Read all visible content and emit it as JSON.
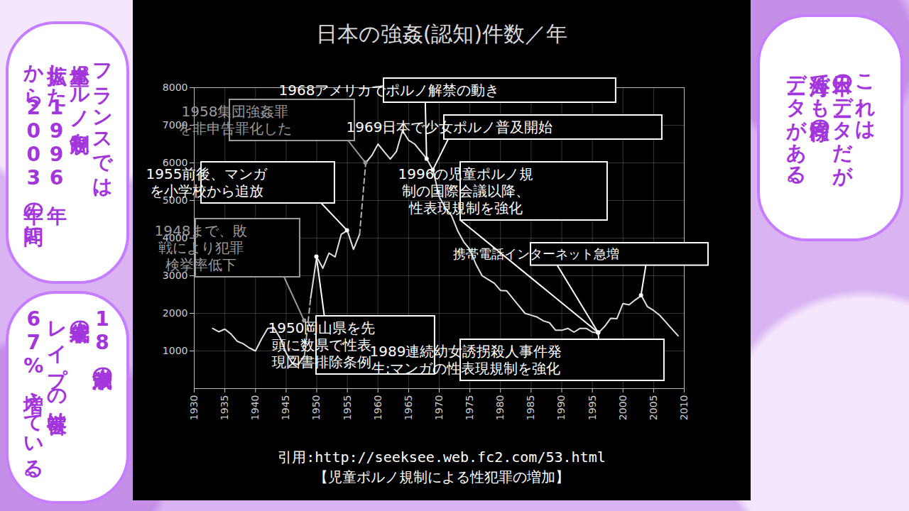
{
  "chart_data": {
    "type": "line",
    "title": "日本の強姦(認知)件数／年",
    "source": "引用:http://seeksee.web.fc2.com/53.html",
    "caption": "【児童ポルノ規制による性犯罪の増加】",
    "x": [
      1933,
      1934,
      1935,
      1936,
      1937,
      1938,
      1939,
      1940,
      1941,
      1942,
      1943,
      1944,
      1945,
      1946,
      1947,
      1948,
      1949,
      1950,
      1951,
      1952,
      1953,
      1954,
      1955,
      1956,
      1957,
      1958,
      1959,
      1960,
      1961,
      1962,
      1963,
      1964,
      1965,
      1966,
      1967,
      1968,
      1969,
      1970,
      1971,
      1972,
      1973,
      1974,
      1975,
      1976,
      1977,
      1978,
      1979,
      1980,
      1981,
      1982,
      1983,
      1984,
      1985,
      1986,
      1987,
      1988,
      1989,
      1990,
      1991,
      1992,
      1993,
      1994,
      1995,
      1996,
      1997,
      1998,
      1999,
      2000,
      2001,
      2002,
      2003,
      2004,
      2005,
      2006,
      2007,
      2008,
      2009
    ],
    "series": [
      {
        "color": "#e0e0e0",
        "line_style": "solid",
        "values": [
          1600,
          1510,
          1580,
          1450,
          1260,
          1190,
          1080,
          1000,
          1320,
          1600,
          1620,
          1350,
          950,
          680,
          640,
          880,
          null,
          null,
          null,
          null,
          null,
          null,
          null,
          null,
          null,
          6000,
          6200,
          6500,
          6300,
          6100,
          6300,
          6857,
          6600,
          6500,
          6300,
          6100,
          5800,
          5100,
          4800,
          4600,
          4200,
          3900,
          3700,
          3300,
          3000,
          2900,
          2800,
          2610,
          2600,
          2400,
          2200,
          2000,
          1950,
          1900,
          1800,
          1750,
          1550,
          1550,
          1600,
          1500,
          1600,
          1600,
          1500,
          1483,
          1650,
          1870,
          1857,
          2260,
          2228,
          2357,
          2472,
          2176,
          2076,
          1948,
          1766,
          1582,
          1402
        ]
      },
      {
        "color": "#e0e0e0",
        "line_style": "solid",
        "values": [
          null,
          null,
          null,
          null,
          null,
          null,
          null,
          null,
          null,
          null,
          null,
          null,
          null,
          null,
          null,
          null,
          2400,
          3500,
          3200,
          3600,
          3500,
          4100,
          4200,
          3700,
          4100,
          null,
          null,
          null,
          null,
          null,
          null,
          null,
          null,
          null,
          null,
          null,
          null,
          null,
          null,
          null,
          null,
          null,
          null,
          null,
          null,
          null,
          null,
          null,
          null,
          null,
          null,
          null,
          null,
          null,
          null,
          null,
          null,
          null,
          null,
          null,
          null,
          null,
          null,
          null,
          null,
          null,
          null,
          null,
          null,
          null,
          null,
          null,
          null,
          null,
          null,
          null,
          null
        ]
      },
      {
        "color": "#b0b0b0",
        "line_style": "dashed",
        "values": [
          null,
          null,
          null,
          null,
          null,
          null,
          null,
          null,
          null,
          null,
          null,
          null,
          null,
          null,
          null,
          880,
          2400,
          null,
          null,
          null,
          null,
          null,
          null,
          null,
          4100,
          6000,
          null,
          null,
          null,
          null,
          null,
          null,
          null,
          null,
          null,
          null,
          null,
          null,
          null,
          null,
          null,
          null,
          null,
          null,
          null,
          null,
          null,
          null,
          null,
          null,
          null,
          null,
          null,
          null,
          null,
          null,
          null,
          null,
          null,
          null,
          null,
          null,
          null,
          null,
          null,
          null,
          null,
          null,
          null,
          null,
          null,
          null,
          null,
          null,
          null,
          null,
          null
        ]
      }
    ],
    "xlim": [
      1930,
      2010
    ],
    "xticks": [
      1930,
      1935,
      1940,
      1945,
      1950,
      1955,
      1960,
      1965,
      1970,
      1975,
      1980,
      1985,
      1990,
      1995,
      2000,
      2005,
      2010
    ],
    "ylim": [
      0,
      8000
    ],
    "yticks": [
      1000,
      2000,
      3000,
      4000,
      5000,
      6000,
      7000,
      8000
    ],
    "grid": true,
    "annotations": [
      {
        "text": [
          "1958集団強姦罪",
          "を非申告罪化した"
        ],
        "points": [
          [
            1958,
            6000
          ]
        ],
        "color": "#9a9a9a"
      },
      {
        "text": [
          "1968アメリカでポルノ解禁の動き"
        ],
        "points": [
          [
            1968,
            6100
          ]
        ],
        "color": "#ffffff"
      },
      {
        "text": [
          "1969日本で少女ポルノ普及開始"
        ],
        "points": [
          [
            1969,
            5800
          ]
        ],
        "color": "#ffffff"
      },
      {
        "text": [
          "1955前後、マンガ",
          "を小学校から追放"
        ],
        "points": [
          [
            1955,
            4200
          ]
        ],
        "color": "#ffffff"
      },
      {
        "text": [
          "1996の児童ポルノ規",
          "制の国際会議以降、",
          "性表現規制を強化"
        ],
        "points": [
          [
            1996,
            1483
          ]
        ],
        "color": "#ffffff"
      },
      {
        "text": [
          "携帯電話インターネット急増"
        ],
        "points": [
          [
            1996,
            1483
          ],
          [
            2003,
            2472
          ]
        ],
        "color": "#ffffff"
      },
      {
        "text": [
          "1948まで、敗",
          "戦により犯罪",
          "検挙率低下"
        ],
        "points": [
          [
            1948,
            1800
          ]
        ],
        "color": "#9a9a9a"
      },
      {
        "text": [
          "1950岡山県を先",
          "頭に数県で性表",
          "現図書排除条例"
        ],
        "points": [
          [
            1950,
            3500
          ]
        ],
        "color": "#ffffff"
      },
      {
        "text": [
          "1989連続幼女誘拐殺人事件発",
          "生:マンガの性表現規制を強化"
        ],
        "points": [
          [
            1996,
            1483
          ]
        ],
        "color": "#ffffff"
      }
    ]
  },
  "speech_bubbles": [
    {
      "lines": [
        "フランスでは、",
        "児童ポルノ規制を",
        "拡大した1996年",
        "から2003年の間に、"
      ]
    },
    {
      "lines": [
        "18歳未満の",
        "未成年者の",
        "レイプの被害は",
        "67%増えている。"
      ]
    },
    {
      "lines": [
        "これは",
        "日本のデータだが",
        "海外でも同様の",
        "データがある。"
      ]
    }
  ]
}
